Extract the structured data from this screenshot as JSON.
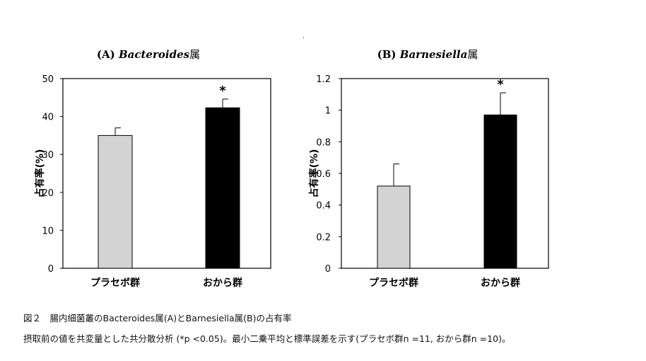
{
  "chart_data": [
    {
      "type": "bar",
      "title_prefix": "(A)",
      "title_italic": "Bacteroides",
      "title_suffix": "属",
      "ylabel": "占有率(%)",
      "categories": [
        "プラセボ群",
        "おから群"
      ],
      "values": [
        35,
        42.3
      ],
      "errors": [
        2,
        2.3
      ],
      "colors": [
        "#d3d3d3",
        "#000000"
      ],
      "significance": [
        "",
        "*"
      ],
      "ylim": [
        0,
        50
      ],
      "yticks": [
        "0",
        "10",
        "20",
        "30",
        "40",
        "50"
      ],
      "ytick_values": [
        0,
        10,
        20,
        30,
        40,
        50
      ],
      "grid": false
    },
    {
      "type": "bar",
      "title_prefix": "(B)",
      "title_italic": "Barnesiella",
      "title_suffix": "属",
      "ylabel": "占有率(%)",
      "categories": [
        "プラセボ群",
        "おから群"
      ],
      "values": [
        0.52,
        0.97
      ],
      "errors": [
        0.14,
        0.14
      ],
      "colors": [
        "#d3d3d3",
        "#000000"
      ],
      "significance": [
        "",
        "*"
      ],
      "ylim": [
        0,
        1.2
      ],
      "yticks": [
        "0",
        "0.2",
        "0.4",
        "0.6",
        "0.8",
        "1",
        "1.2"
      ],
      "ytick_values": [
        0,
        0.2,
        0.4,
        0.6,
        0.8,
        1,
        1.2
      ],
      "grid": false
    }
  ],
  "caption": {
    "line1": "図２　腸内細菌叢のBacteroides属(A)とBarnesiella属(B)の占有率",
    "line2": "摂取前の値を共変量とした共分散分析 (*p <0.05)。最小二乗平均と標準誤差を示す(プラセボ群n =11,  おから群n =10)。"
  },
  "stray_mark": "."
}
